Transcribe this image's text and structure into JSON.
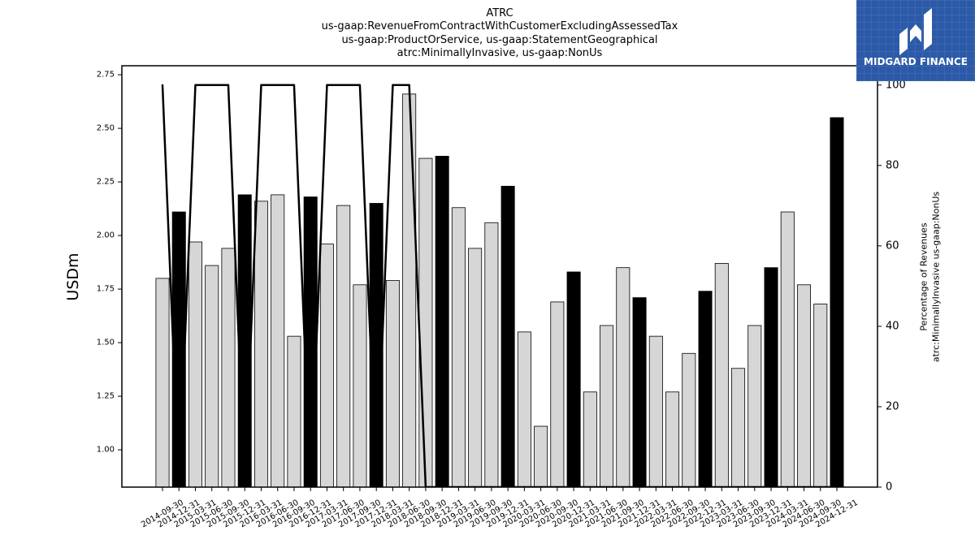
{
  "logo": {
    "text": "MIDGARD FINANCE",
    "icon": "midgard-logo-icon",
    "background": "#2c5aa8"
  },
  "chart_data": {
    "type": "bar",
    "title": [
      "ATRC",
      "us-gaap:RevenueFromContractWithCustomerExcludingAssessedTax",
      "us-gaap:ProductOrService, us-gaap:StatementGeographical",
      "atrc:MinimallyInvasive, us-gaap:NonUs"
    ],
    "ylabel": "USDm",
    "y2label": [
      "Percentage of Revenues",
      "atrc:MinimallyInvasive us-gaap:NonUs"
    ],
    "categories": [
      "2014-09-30",
      "2014-12-31",
      "2015-03-31",
      "2015-06-30",
      "2015-09-30",
      "2015-12-31",
      "2016-03-31",
      "2016-06-30",
      "2016-09-30",
      "2016-12-31",
      "2017-03-31",
      "2017-06-30",
      "2017-09-30",
      "2017-12-31",
      "2018-03-31",
      "2018-06-30",
      "2018-09-30",
      "2018-12-31",
      "2019-03-31",
      "2019-06-30",
      "2019-09-30",
      "2019-12-31",
      "2020-03-31",
      "2020-06-30",
      "2020-09-30",
      "2020-12-31",
      "2021-03-31",
      "2021-06-30",
      "2021-09-30",
      "2021-12-31",
      "2022-03-31",
      "2022-06-30",
      "2022-09-30",
      "2022-12-31",
      "2023-03-31",
      "2023-06-30",
      "2023-09-30",
      "2023-12-31",
      "2024-03-31",
      "2024-06-30",
      "2024-09-30",
      "2024-12-31"
    ],
    "series": [
      {
        "type": "bar",
        "axis": "left",
        "values": [
          1.8,
          2.11,
          1.97,
          1.86,
          1.94,
          2.19,
          2.16,
          2.19,
          1.53,
          2.18,
          1.96,
          2.14,
          1.77,
          2.15,
          1.79,
          2.66,
          2.36,
          2.37,
          2.13,
          1.94,
          2.06,
          2.23,
          1.55,
          1.11,
          1.69,
          1.83,
          1.27,
          1.58,
          1.85,
          1.71,
          1.53,
          1.27,
          1.45,
          1.74,
          1.87,
          1.38,
          1.58,
          1.85,
          2.11,
          1.77,
          1.68,
          2.55
        ],
        "colors": [
          "#d6d6d6",
          "#000000",
          "#d6d6d6",
          "#d6d6d6",
          "#d6d6d6",
          "#000000",
          "#d6d6d6",
          "#d6d6d6",
          "#d6d6d6",
          "#000000",
          "#d6d6d6",
          "#d6d6d6",
          "#d6d6d6",
          "#000000",
          "#d6d6d6",
          "#d6d6d6",
          "#d6d6d6",
          "#000000",
          "#d6d6d6",
          "#d6d6d6",
          "#d6d6d6",
          "#000000",
          "#d6d6d6",
          "#d6d6d6",
          "#d6d6d6",
          "#000000",
          "#d6d6d6",
          "#d6d6d6",
          "#d6d6d6",
          "#000000",
          "#d6d6d6",
          "#d6d6d6",
          "#d6d6d6",
          "#000000",
          "#d6d6d6",
          "#d6d6d6",
          "#d6d6d6",
          "#000000",
          "#d6d6d6",
          "#d6d6d6",
          "#d6d6d6",
          "#000000"
        ]
      },
      {
        "type": "line",
        "axis": "right",
        "color": "#000000",
        "values": [
          100,
          0,
          100,
          100,
          100,
          0,
          100,
          100,
          100,
          0,
          100,
          100,
          100,
          0,
          100,
          100,
          0,
          0,
          0,
          0,
          0,
          0,
          0,
          0,
          0,
          0,
          0,
          0,
          0,
          0,
          0,
          0,
          0,
          0,
          0,
          0,
          0,
          0,
          0,
          0,
          0,
          0
        ]
      }
    ],
    "ylim": [
      0.826,
      2.792
    ],
    "y2lim": [
      0,
      104.8
    ],
    "yticks": [
      "1.00",
      "1.25",
      "1.50",
      "1.75",
      "2.00",
      "2.25",
      "2.50",
      "2.75"
    ],
    "y2ticks": [
      "0",
      "20",
      "40",
      "60",
      "80",
      "100"
    ],
    "grid": false
  }
}
